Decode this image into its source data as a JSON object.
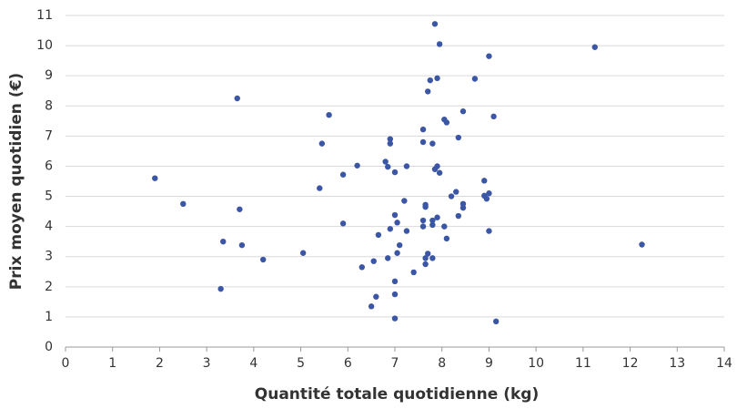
{
  "chart_data": {
    "type": "scatter",
    "xlabel": "Quantité totale quotidienne (kg)",
    "ylabel": "Prix moyen quotidien (€)",
    "x": [
      1.9,
      2.5,
      3.3,
      3.35,
      3.65,
      3.7,
      3.75,
      4.2,
      5.05,
      5.4,
      5.45,
      5.6,
      5.9,
      5.9,
      6.2,
      6.3,
      6.5,
      6.55,
      6.6,
      6.65,
      6.8,
      6.85,
      6.85,
      6.9,
      6.9,
      6.9,
      7.0,
      7.0,
      7.0,
      7.0,
      7.0,
      7.05,
      7.05,
      7.1,
      7.2,
      7.25,
      7.25,
      7.4,
      7.6,
      7.6,
      7.6,
      7.65,
      7.65,
      7.6,
      7.65,
      7.65,
      7.7,
      7.7,
      7.75,
      7.8,
      7.8,
      7.8,
      7.8,
      7.85,
      7.85,
      7.9,
      7.9,
      7.9,
      7.95,
      7.95,
      8.05,
      8.1,
      8.05,
      8.1,
      8.2,
      8.3,
      8.35,
      8.35,
      8.45,
      8.45,
      8.45,
      8.7,
      8.9,
      8.9,
      9.0,
      8.95,
      9.0,
      9.0,
      9.1,
      9.15,
      11.25,
      12.25
    ],
    "series": [
      {
        "color": "#3a56a5",
        "values": [
          5.6,
          4.75,
          1.93,
          3.5,
          8.25,
          4.57,
          3.38,
          2.9,
          3.12,
          5.27,
          6.75,
          7.7,
          5.72,
          4.1,
          6.02,
          2.65,
          1.35,
          2.85,
          1.67,
          3.72,
          6.15,
          5.98,
          2.95,
          6.9,
          6.75,
          3.92,
          4.38,
          5.8,
          0.95,
          1.75,
          2.18,
          4.13,
          3.12,
          3.38,
          4.85,
          3.85,
          6.0,
          2.48,
          7.22,
          6.8,
          4.2,
          4.72,
          4.65,
          4.0,
          2.95,
          2.75,
          3.1,
          8.48,
          8.85,
          6.75,
          4.05,
          4.2,
          2.95,
          5.9,
          10.72,
          8.92,
          6.0,
          4.3,
          10.05,
          5.78,
          7.55,
          7.45,
          4.0,
          3.6,
          5.0,
          5.15,
          4.35,
          6.95,
          7.82,
          4.75,
          4.62,
          8.9,
          5.52,
          5.02,
          5.1,
          4.92,
          3.85,
          9.65,
          7.65,
          0.85,
          9.95,
          3.4
        ]
      }
    ],
    "xlim": [
      0,
      14
    ],
    "xticks": [
      0,
      1,
      2,
      3,
      4,
      5,
      6,
      7,
      8,
      9,
      10,
      11,
      12,
      13,
      14
    ],
    "ylim": [
      0,
      11
    ],
    "yticks": [
      0,
      1,
      2,
      3,
      4,
      5,
      6,
      7,
      8,
      9,
      10,
      11
    ],
    "grid": true
  }
}
